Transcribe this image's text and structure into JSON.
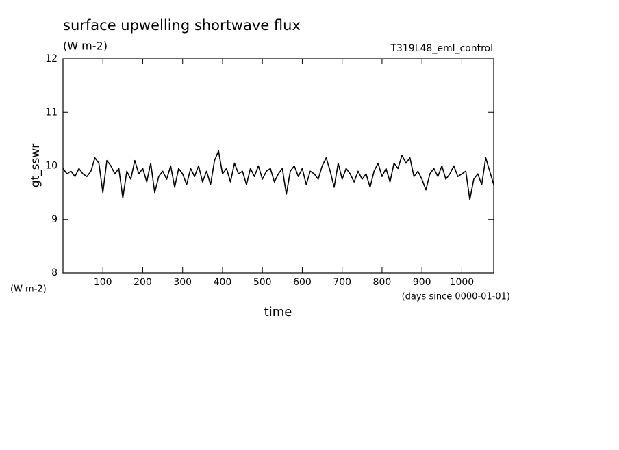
{
  "chart_data": {
    "type": "line",
    "title": "surface upwelling shortwave flux",
    "subtitle": "(W m-2)",
    "annotation": "T319L48_eml_control",
    "y_label": "gt_sswr",
    "y_unit": "(W m-2)",
    "x_label": "time",
    "x_unit": "(days since 0000-01-01)",
    "x": [
      0,
      10,
      20,
      30,
      40,
      50,
      60,
      70,
      80,
      90,
      100,
      110,
      120,
      130,
      140,
      150,
      160,
      170,
      180,
      190,
      200,
      210,
      220,
      230,
      240,
      250,
      260,
      270,
      280,
      290,
      300,
      310,
      320,
      330,
      340,
      350,
      360,
      370,
      380,
      390,
      400,
      410,
      420,
      430,
      440,
      450,
      460,
      470,
      480,
      490,
      500,
      510,
      520,
      530,
      540,
      550,
      560,
      570,
      580,
      590,
      600,
      610,
      620,
      630,
      640,
      650,
      660,
      670,
      680,
      690,
      700,
      710,
      720,
      730,
      740,
      750,
      760,
      770,
      780,
      790,
      800,
      810,
      820,
      830,
      840,
      850,
      860,
      870,
      880,
      890,
      900,
      910,
      920,
      930,
      940,
      950,
      960,
      970,
      980,
      990,
      1000,
      1010,
      1020,
      1030,
      1040,
      1050,
      1060,
      1070,
      1080
    ],
    "series": [
      {
        "name": "gt_sswr",
        "color": "#000000",
        "values": [
          9.95,
          9.85,
          9.9,
          9.8,
          9.95,
          9.85,
          9.8,
          9.9,
          10.15,
          10.05,
          9.5,
          10.1,
          10.0,
          9.85,
          9.95,
          9.4,
          9.9,
          9.75,
          10.1,
          9.85,
          9.95,
          9.7,
          10.05,
          9.5,
          9.8,
          9.9,
          9.75,
          10.0,
          9.6,
          9.95,
          9.85,
          9.65,
          9.95,
          9.8,
          10.0,
          9.7,
          9.9,
          9.65,
          10.1,
          10.28,
          9.85,
          9.95,
          9.7,
          10.05,
          9.85,
          9.9,
          9.65,
          9.95,
          9.8,
          10.0,
          9.75,
          9.9,
          9.95,
          9.7,
          9.85,
          9.95,
          9.47,
          9.9,
          10.0,
          9.8,
          9.95,
          9.65,
          9.9,
          9.85,
          9.75,
          10.0,
          10.15,
          9.9,
          9.6,
          10.05,
          9.75,
          9.95,
          9.85,
          9.7,
          9.9,
          9.75,
          9.85,
          9.6,
          9.9,
          10.05,
          9.8,
          9.95,
          9.7,
          10.05,
          9.95,
          10.2,
          10.05,
          10.15,
          9.8,
          9.9,
          9.75,
          9.55,
          9.85,
          9.95,
          9.8,
          10.0,
          9.75,
          9.85,
          10.0,
          9.8,
          9.85,
          9.9,
          9.37,
          9.75,
          9.85,
          9.65,
          10.15,
          9.9,
          9.65
        ]
      }
    ],
    "xlim": [
      0,
      1080
    ],
    "ylim": [
      8,
      12
    ],
    "xticks": [
      100,
      200,
      300,
      400,
      500,
      600,
      700,
      800,
      900,
      1000
    ],
    "yticks": [
      8,
      9,
      10,
      11,
      12
    ]
  }
}
